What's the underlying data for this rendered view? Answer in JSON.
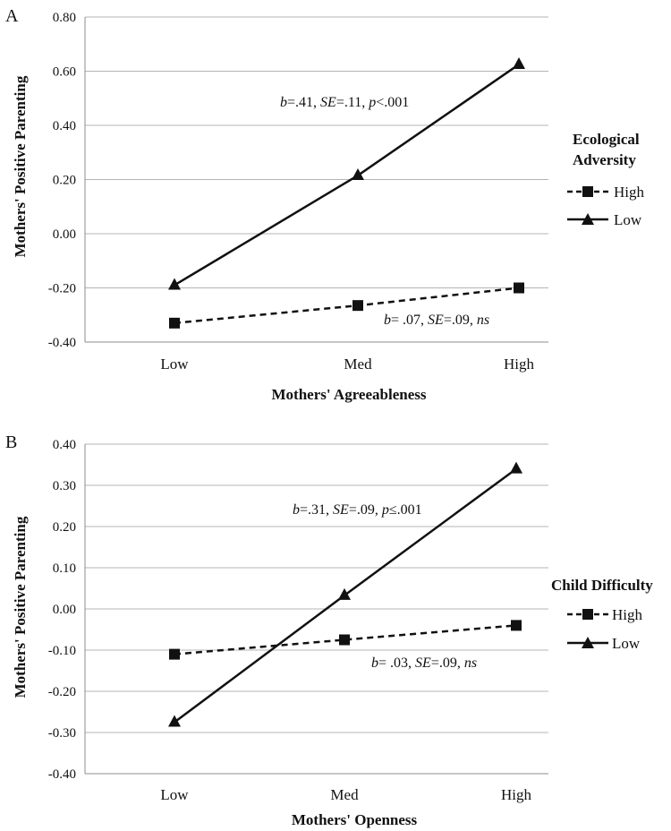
{
  "chart_data": [
    {
      "type": "line",
      "panel_label": "A",
      "categories": [
        "Low",
        "Med",
        "High"
      ],
      "series": [
        {
          "name": "High",
          "style": "dashed",
          "marker": "square",
          "values": [
            -0.33,
            -0.265,
            -0.2
          ]
        },
        {
          "name": "Low",
          "style": "solid",
          "marker": "triangle",
          "values": [
            -0.19,
            0.215,
            0.625
          ]
        }
      ],
      "ylim": [
        -0.4,
        0.8
      ],
      "yticks": [
        -0.4,
        -0.2,
        0.0,
        0.2,
        0.4,
        0.6,
        0.8
      ],
      "ytick_labels": [
        "-0.40",
        "-0.20",
        "0.00",
        "0.20",
        "0.40",
        "0.60",
        "0.80"
      ],
      "xlabel": "Mothers' Agreeableness",
      "ylabel": "Mothers' Positive Parenting",
      "legend": {
        "title": "Ecological Adversity",
        "title_lines": [
          "Ecological",
          "Adversity"
        ],
        "entries": [
          "High",
          "Low"
        ],
        "placement": "right"
      },
      "annotations": [
        {
          "b": "b",
          "t1": "=.41, ",
          "se": "SE",
          "t2": "=.11, ",
          "p": "p",
          "t3": "<.001"
        },
        {
          "b": "b",
          "t1": "= .07, ",
          "se": "SE",
          "t2": "=.09, ",
          "p": "ns",
          "t3": ""
        }
      ],
      "grid": true
    },
    {
      "type": "line",
      "panel_label": "B",
      "categories": [
        "Low",
        "Med",
        "High"
      ],
      "series": [
        {
          "name": "High",
          "style": "dashed",
          "marker": "square",
          "values": [
            -0.11,
            -0.075,
            -0.04
          ]
        },
        {
          "name": "Low",
          "style": "solid",
          "marker": "triangle",
          "values": [
            -0.275,
            0.033,
            0.34
          ]
        }
      ],
      "ylim": [
        -0.4,
        0.4
      ],
      "yticks": [
        -0.4,
        -0.3,
        -0.2,
        -0.1,
        0.0,
        0.1,
        0.2,
        0.3,
        0.4
      ],
      "ytick_labels": [
        "-0.40",
        "-0.30",
        "-0.20",
        "-0.10",
        "0.00",
        "0.10",
        "0.20",
        "0.30",
        "0.40"
      ],
      "xlabel": "Mothers' Openness",
      "ylabel": "Mothers' Positive Parenting",
      "legend": {
        "title": "Child Difficulty",
        "title_lines": [
          "Child Difficulty"
        ],
        "entries": [
          "High",
          "Low"
        ],
        "placement": "right"
      },
      "annotations": [
        {
          "b": "b",
          "t1": "=.31, ",
          "se": "SE",
          "t2": "=.09, ",
          "p": "p",
          "t3": "≤.001"
        },
        {
          "b": "b",
          "t1": "= .03, ",
          "se": "SE",
          "t2": "=.09, ",
          "p": "ns",
          "t3": ""
        }
      ],
      "grid": true
    }
  ]
}
